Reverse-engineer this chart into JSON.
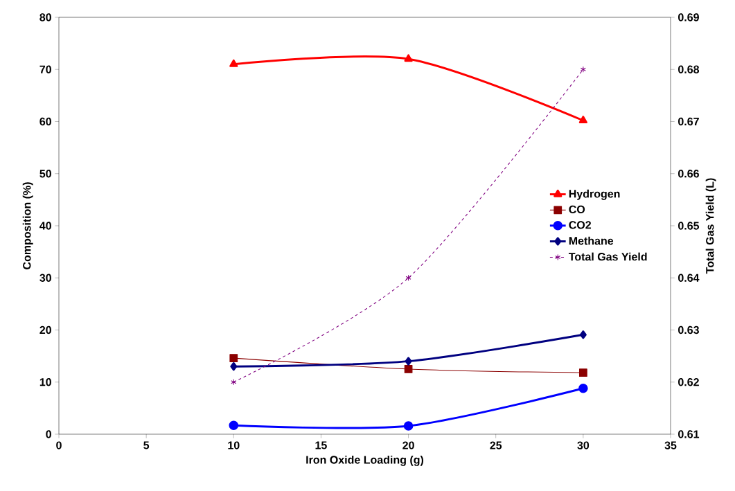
{
  "chart_data": {
    "type": "line",
    "xlabel": "Iron Oxide Loading (g)",
    "ylabel": "Composition (%)",
    "y2label": "Total Gas Yield (L)",
    "x": [
      10,
      20,
      30
    ],
    "series": [
      {
        "name": "Hydrogen",
        "color": "#ff0000",
        "marker": "triangle",
        "line_style": "solid",
        "values": [
          71,
          72,
          60.2
        ]
      },
      {
        "name": "CO",
        "color": "#8b0000",
        "marker": "square",
        "line_style": "solid",
        "values": [
          14.6,
          12.5,
          11.8
        ]
      },
      {
        "name": "CO2",
        "color": "#0000ff",
        "marker": "circle",
        "line_style": "solid",
        "values": [
          1.7,
          1.6,
          8.8
        ]
      },
      {
        "name": "Methane",
        "color": "#000080",
        "marker": "diamond",
        "line_style": "solid",
        "values": [
          13,
          14,
          19.1
        ]
      },
      {
        "name": "Total Gas Yield",
        "color": "#800080",
        "marker": "cross",
        "line_style": "dashed",
        "axis": "y2",
        "values": [
          0.62,
          0.64,
          0.68
        ]
      }
    ],
    "xlim": [
      0,
      35
    ],
    "xticks": [
      0,
      5,
      10,
      15,
      20,
      25,
      30,
      35
    ],
    "ylim": [
      0,
      80
    ],
    "yticks": [
      0,
      10,
      20,
      30,
      40,
      50,
      60,
      70,
      80
    ],
    "y2lim": [
      0.61,
      0.69
    ],
    "y2ticks": [
      0.61,
      0.62,
      0.63,
      0.64,
      0.65,
      0.66,
      0.67,
      0.68,
      0.69
    ],
    "grid": false,
    "legend": "right"
  }
}
